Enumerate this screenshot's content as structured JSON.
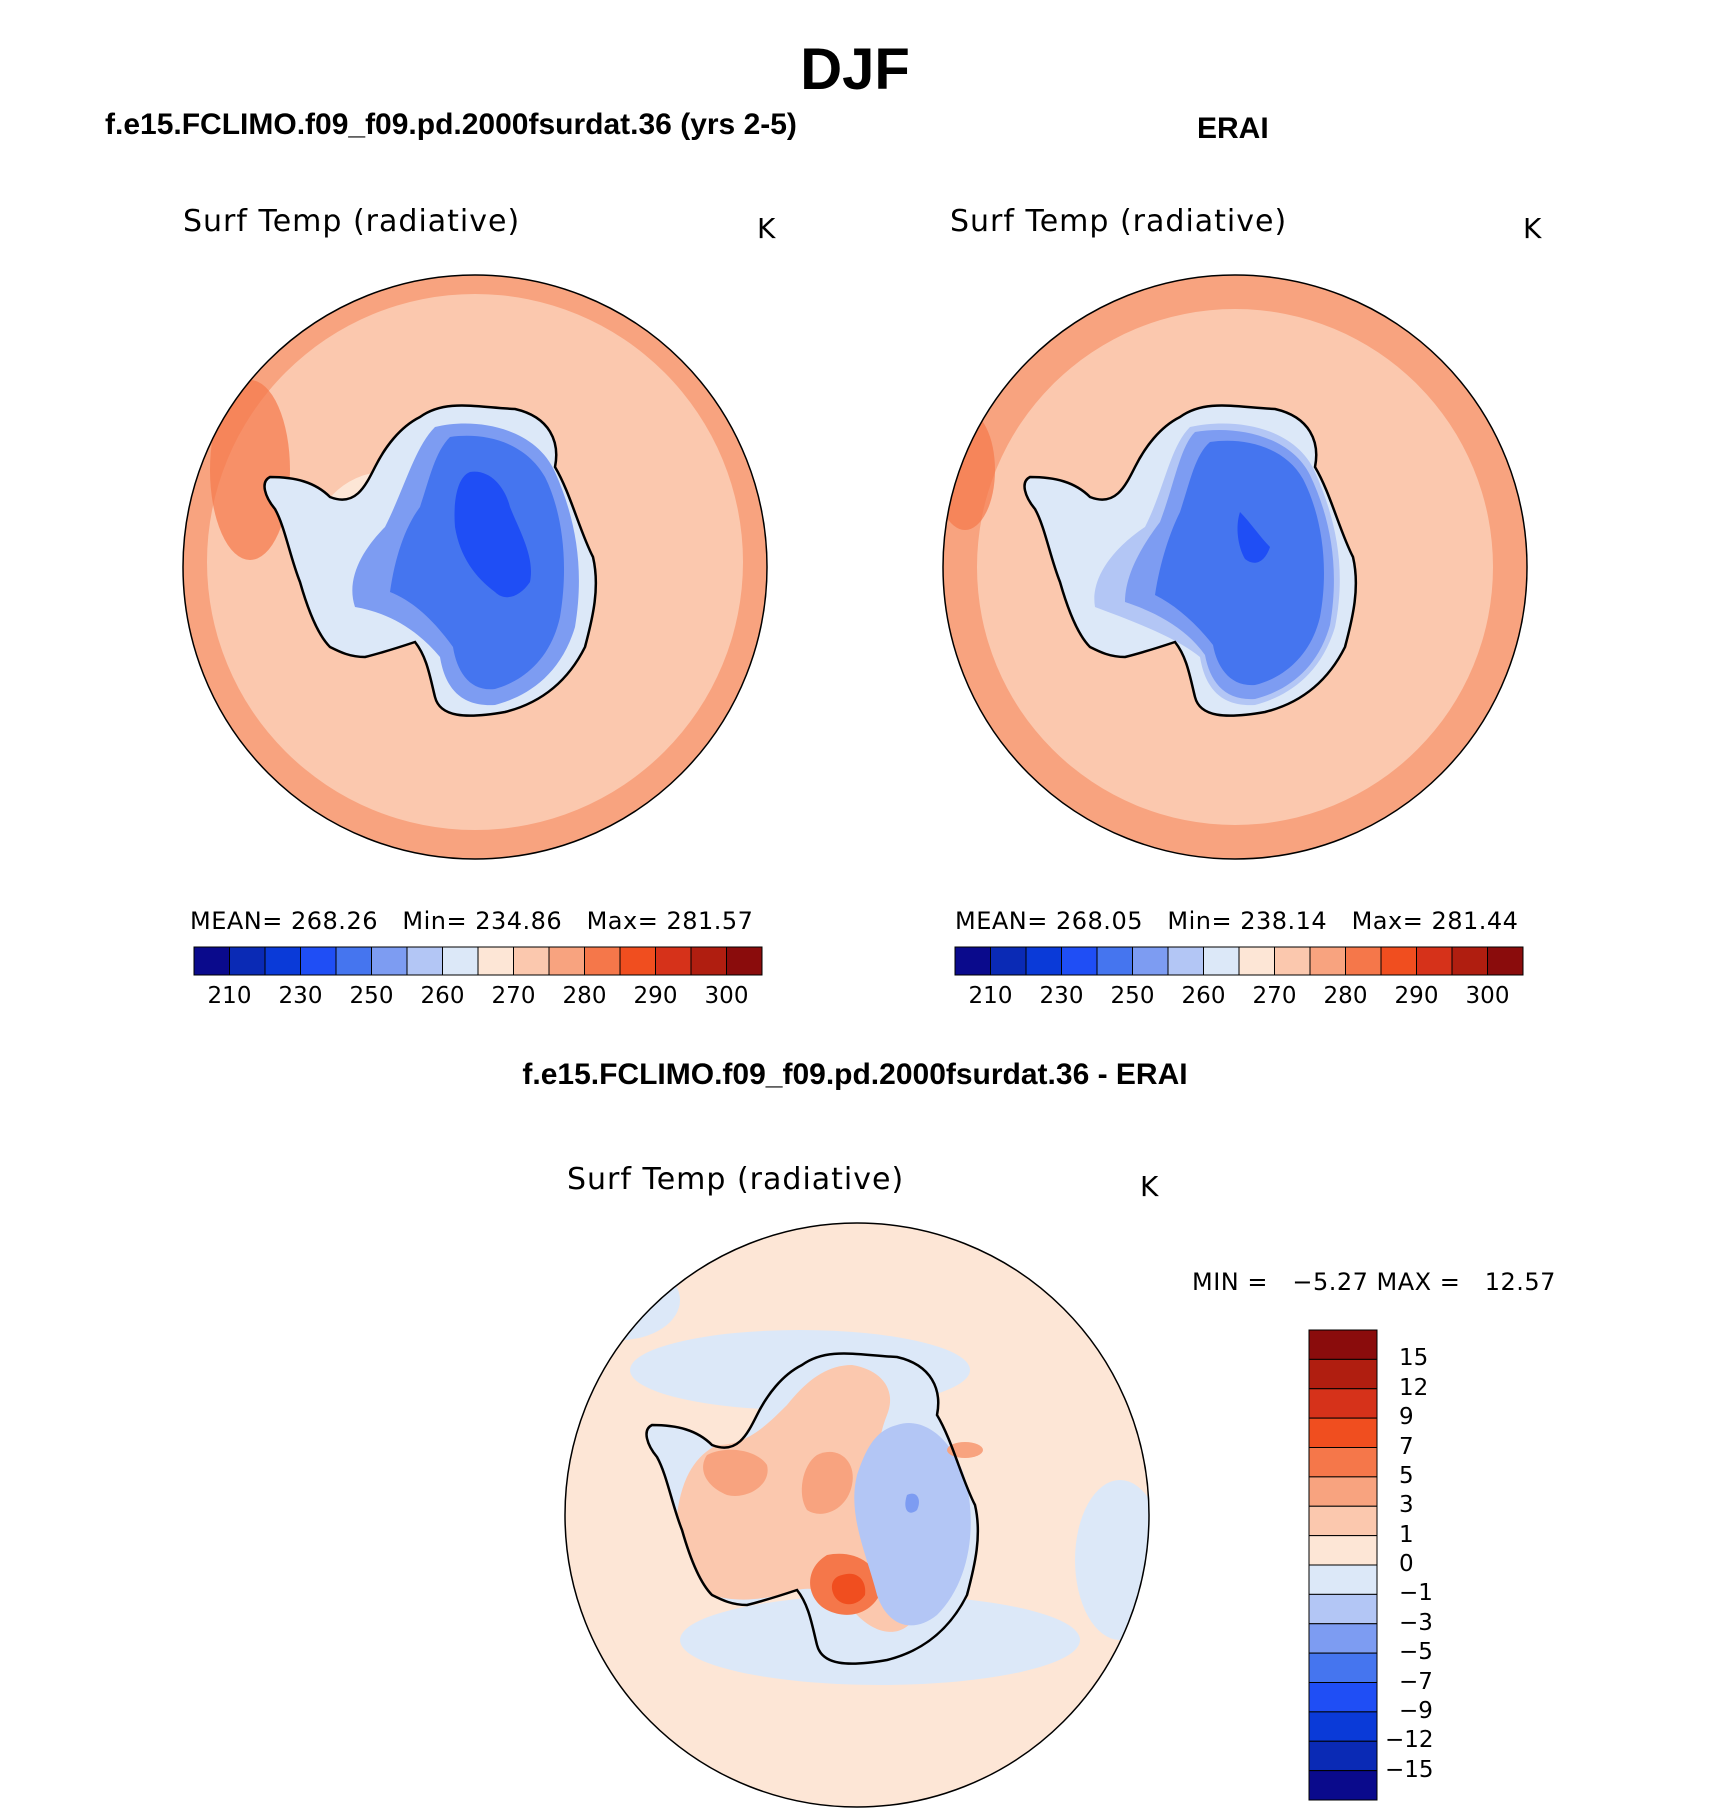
{
  "figure": {
    "season_title": "DJF"
  },
  "panels": [
    {
      "heading": "f.e15.FCLIMO.f09_f09.pd.2000fsurdat.36 (yrs 2-5)",
      "variable": "Surf Temp (radiative)",
      "units": "K",
      "stats": {
        "mean_label": "MEAN=",
        "mean": "268.26",
        "min_label": "Min=",
        "min": "234.86",
        "max_label": "Max=",
        "max": "281.57"
      }
    },
    {
      "heading": "ERAI",
      "variable": "Surf Temp (radiative)",
      "units": "K",
      "stats": {
        "mean_label": "MEAN=",
        "mean": "268.05",
        "min_label": "Min=",
        "min": "238.14",
        "max_label": "Max=",
        "max": "281.44"
      }
    },
    {
      "heading": "f.e15.FCLIMO.f09_f09.pd.2000fsurdat.36 - ERAI",
      "variable": "Surf Temp (radiative)",
      "units": "K",
      "stats_text": "MIN =   −5.27 MAX =   12.57"
    }
  ],
  "chart_data": [
    {
      "type": "heatmap",
      "projection": "south polar stereographic",
      "title": "Surf Temp (radiative)",
      "units": "K",
      "colorbar": {
        "orientation": "horizontal",
        "levels": [
          210,
          220,
          230,
          240,
          250,
          255,
          260,
          265,
          270,
          275,
          280,
          285,
          290,
          295,
          300
        ],
        "tick_labels": [
          "210",
          "230",
          "250",
          "260",
          "270",
          "280",
          "290",
          "300"
        ],
        "colors": [
          "#0a0a8c",
          "#0a2ab5",
          "#0a3ad8",
          "#1f4ef5",
          "#4575ef",
          "#7d9cf2",
          "#b3c6f5",
          "#dce8f8",
          "#fde6d6",
          "#fbc8ae",
          "#f8a37f",
          "#f5774a",
          "#f04e1f",
          "#d6321a",
          "#b01e10",
          "#8a0c0c"
        ]
      },
      "stats": {
        "mean": 268.26,
        "min": 234.86,
        "max": 281.57
      }
    },
    {
      "type": "heatmap",
      "projection": "south polar stereographic",
      "title": "Surf Temp (radiative)",
      "units": "K",
      "colorbar": {
        "orientation": "horizontal",
        "levels": [
          210,
          220,
          230,
          240,
          250,
          255,
          260,
          265,
          270,
          275,
          280,
          285,
          290,
          295,
          300
        ],
        "tick_labels": [
          "210",
          "230",
          "250",
          "260",
          "270",
          "280",
          "290",
          "300"
        ],
        "colors": [
          "#0a0a8c",
          "#0a2ab5",
          "#0a3ad8",
          "#1f4ef5",
          "#4575ef",
          "#7d9cf2",
          "#b3c6f5",
          "#dce8f8",
          "#fde6d6",
          "#fbc8ae",
          "#f8a37f",
          "#f5774a",
          "#f04e1f",
          "#d6321a",
          "#b01e10",
          "#8a0c0c"
        ]
      },
      "stats": {
        "mean": 268.05,
        "min": 238.14,
        "max": 281.44
      }
    },
    {
      "type": "heatmap",
      "projection": "south polar stereographic",
      "title": "Surf Temp (radiative)",
      "units": "K",
      "colorbar": {
        "orientation": "vertical",
        "tick_labels": [
          "15",
          "12",
          "9",
          "7",
          "5",
          "3",
          "1",
          "0",
          "−1",
          "−3",
          "−5",
          "−7",
          "−9",
          "−12",
          "−15"
        ],
        "colors": [
          "#8a0c0c",
          "#b01e10",
          "#d6321a",
          "#f04e1f",
          "#f5774a",
          "#f8a37f",
          "#fbc8ae",
          "#fde6d6",
          "#dce8f8",
          "#b3c6f5",
          "#7d9cf2",
          "#4575ef",
          "#1f4ef5",
          "#0a3ad8",
          "#0a2ab5",
          "#0a0a8c"
        ]
      },
      "stats": {
        "min": -5.27,
        "max": 12.57
      }
    }
  ]
}
